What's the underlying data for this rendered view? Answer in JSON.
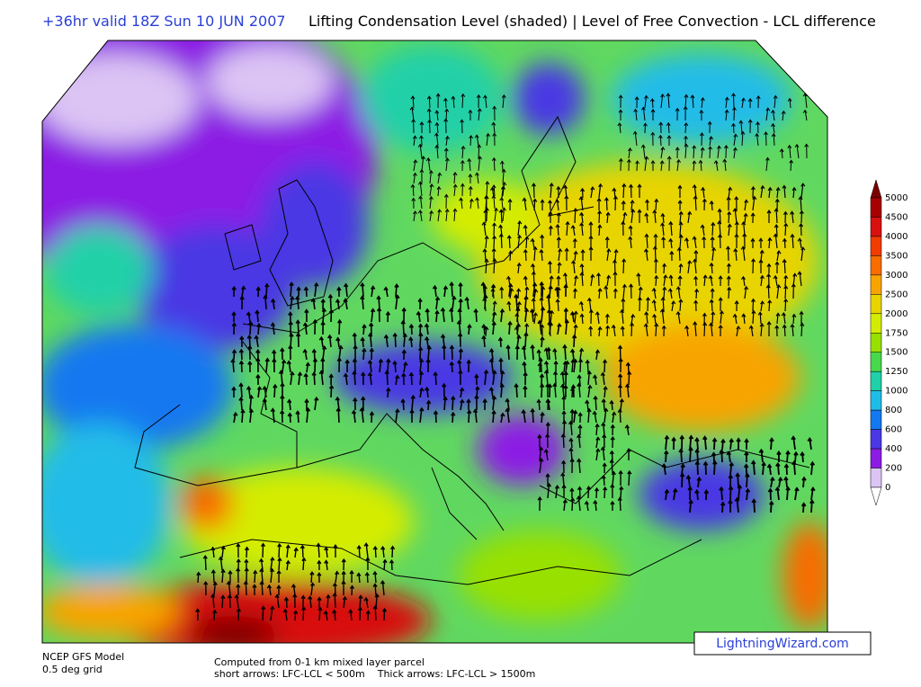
{
  "header": {
    "valid_time": "+36hr valid 18Z Sun 10 JUN 2007",
    "title": "Lifting Condensation Level (shaded) | Level of Free Convection - LCL difference"
  },
  "colorbar": {
    "labels": [
      "5000",
      "4500",
      "4000",
      "3500",
      "3000",
      "2500",
      "2000",
      "1750",
      "1500",
      "1250",
      "1000",
      "800",
      "600",
      "400",
      "200",
      "0"
    ],
    "colors": [
      "#7a0000",
      "#a80000",
      "#d81010",
      "#f03c00",
      "#f86c00",
      "#f8a400",
      "#e8d400",
      "#d4ec00",
      "#98e000",
      "#48d84c",
      "#20d0a8",
      "#20bce8",
      "#1478f0",
      "#4a38e4",
      "#8c1ce4",
      "#dcc4f4",
      "#ffffff"
    ]
  },
  "footer": {
    "model": "NCEP GFS Model",
    "grid": "0.5 deg grid",
    "computed": "Computed from 0-1 km mixed layer parcel",
    "arrows": "short arrows: LFC-LCL < 500m    Thick arrows: LFC-LCL > 1500m",
    "credit": "LightningWizard.com"
  }
}
